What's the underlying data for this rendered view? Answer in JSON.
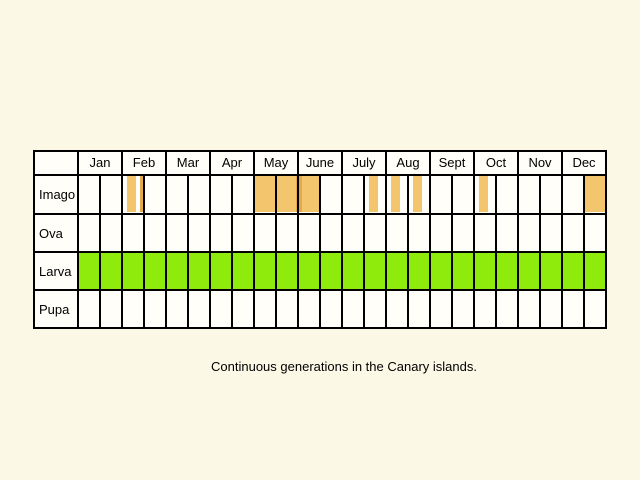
{
  "months": [
    "Jan",
    "Feb",
    "Mar",
    "Apr",
    "May",
    "June",
    "July",
    "Aug",
    "Sept",
    "Oct",
    "Nov",
    "Dec"
  ],
  "stages": [
    {
      "label": "Imago",
      "color": "#F3C66D",
      "periods": [
        {
          "start_half": 2,
          "end_half": 2,
          "note": "narrow band early Feb"
        },
        {
          "start_half": 8,
          "end_half": 10
        },
        {
          "start_half": 13,
          "end_half": 13,
          "note": "narrow band mid July"
        },
        {
          "start_half": 14,
          "end_half": 14,
          "note": "narrow band early Aug"
        },
        {
          "start_half": 15,
          "end_half": 15,
          "note": "narrow band mid Aug"
        },
        {
          "start_half": 18,
          "end_half": 18,
          "note": "narrow band early Oct"
        },
        {
          "start_half": 23,
          "end_half": 23
        }
      ]
    },
    {
      "label": "Ova",
      "color": "#FFFFFF",
      "periods": []
    },
    {
      "label": "Larva",
      "color": "#8EEB0C",
      "periods": [
        {
          "start_half": 0,
          "end_half": 23
        }
      ]
    },
    {
      "label": "Pupa",
      "color": "#FFFFFF",
      "periods": []
    }
  ],
  "caption": "Continuous generations in the Canary islands.",
  "colors": {
    "background": "#FCF8E6",
    "cell": "#FFFEF9",
    "grid": "#000000",
    "imago": "#F3C66D",
    "imago_dark": "#E3AA4C",
    "larva": "#8EEB0C"
  }
}
